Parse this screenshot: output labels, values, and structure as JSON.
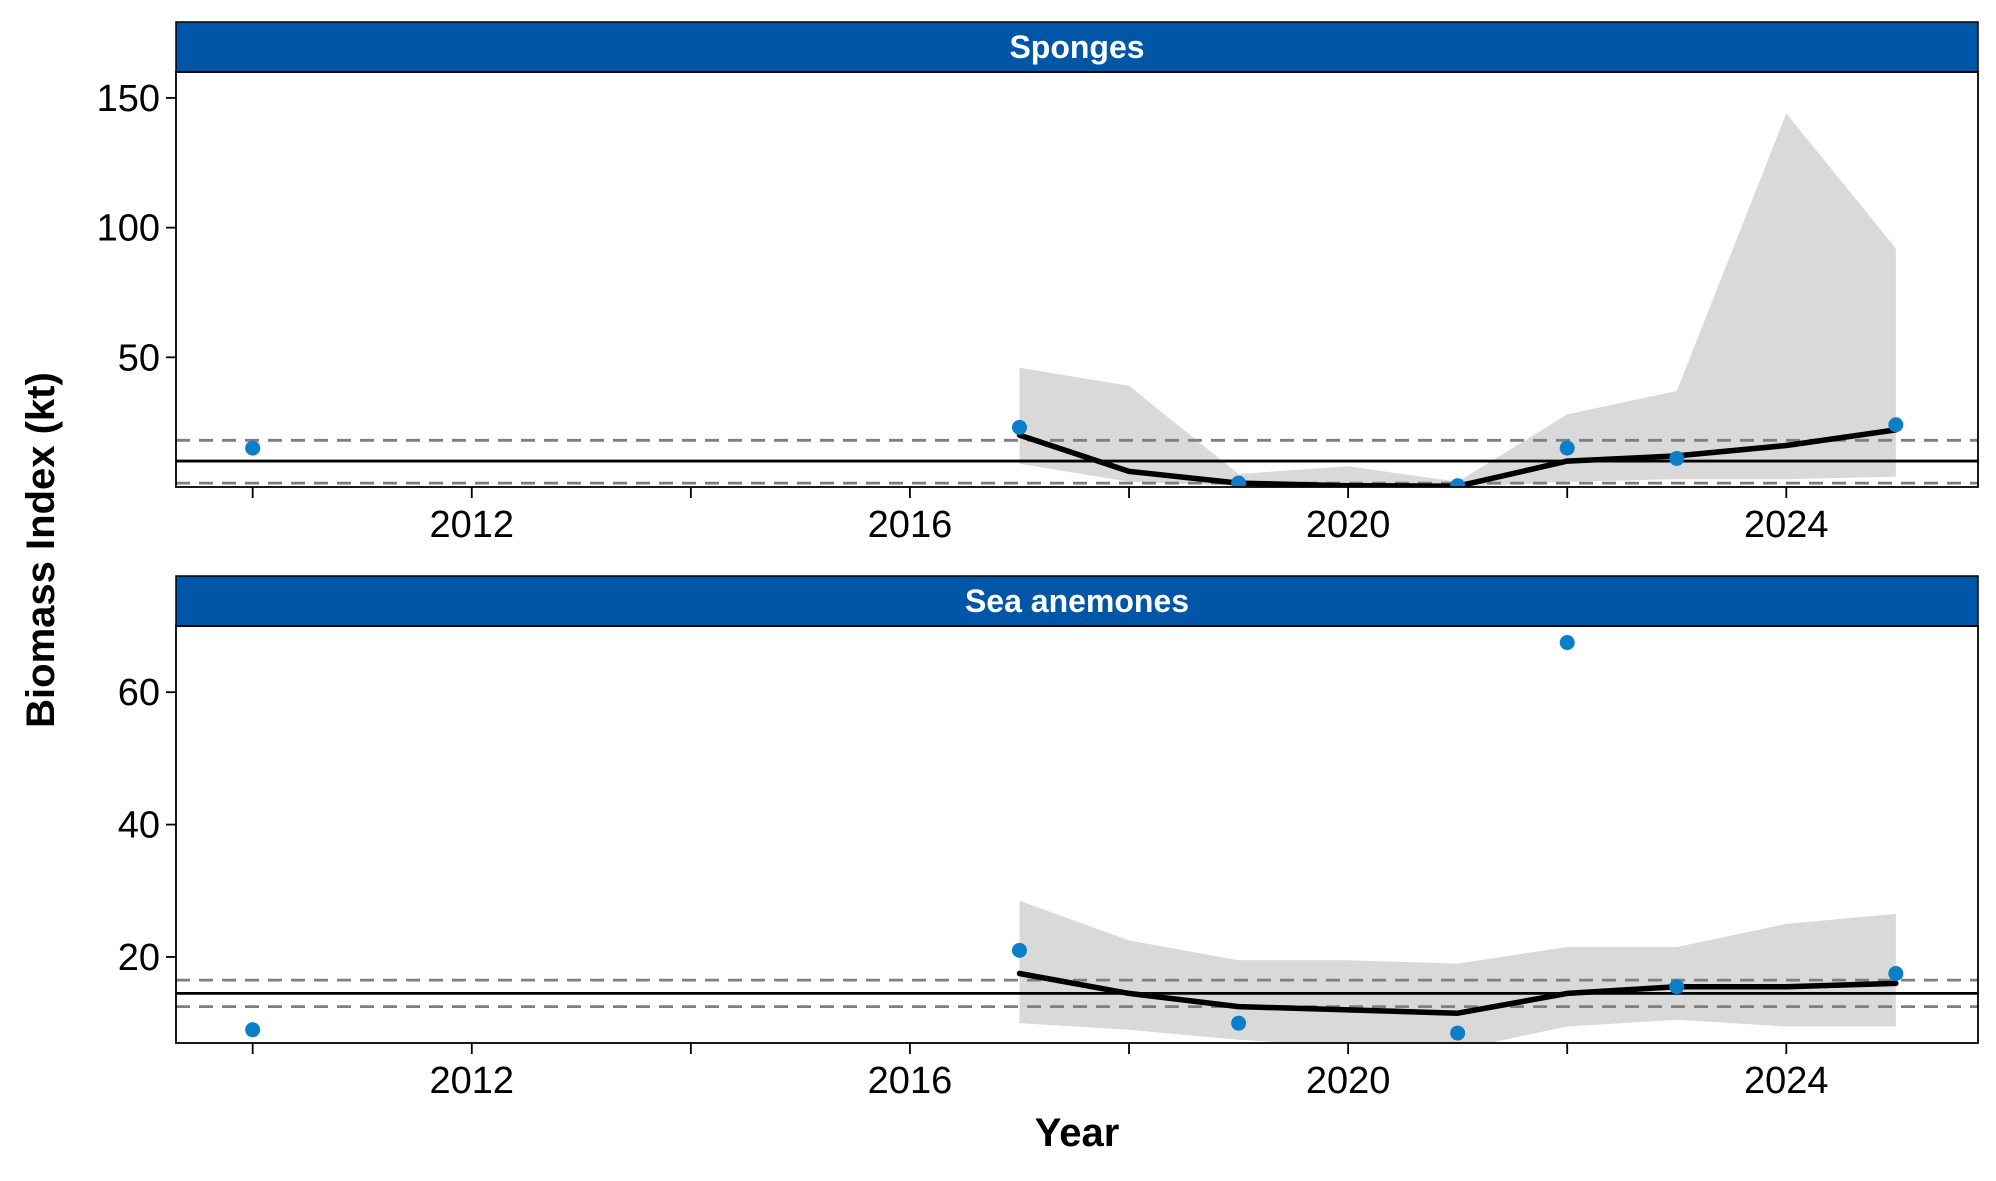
{
  "chart_data": {
    "type": "line",
    "xlabel": "Year",
    "ylabel": "Biomass Index (kt)",
    "xlim": [
      2009.3,
      2025.75
    ],
    "x_ticks": [
      2012,
      2016,
      2020,
      2024
    ],
    "x_minor_ticks": [
      2010,
      2014,
      2018,
      2022
    ],
    "colors": {
      "strip": "#0056a6",
      "points": "#0a7ec9",
      "ribbon": "#d9d9d9",
      "line": "#000000",
      "reference": "#7f7f7f"
    },
    "panels": [
      {
        "title": "Sponges",
        "ylim": [
          0,
          160
        ],
        "y_ticks": [
          50,
          100,
          150
        ],
        "y_tick_labels": [
          "50",
          "100",
          "150"
        ],
        "observed": {
          "x": [
            2010,
            2017,
            2019,
            2021,
            2022,
            2023,
            2025
          ],
          "y": [
            15,
            23,
            1.5,
            0.5,
            15,
            11,
            24
          ]
        },
        "fitted": {
          "x": [
            2017,
            2018,
            2019,
            2020,
            2021,
            2022,
            2023,
            2024,
            2025
          ],
          "y": [
            20,
            6,
            1.5,
            0.5,
            0.3,
            10,
            12,
            16,
            22
          ],
          "lower": [
            9,
            2,
            0.5,
            0,
            0,
            2,
            3,
            3,
            4
          ],
          "upper": [
            46,
            39,
            5,
            8,
            2,
            28,
            37,
            144,
            92
          ]
        },
        "reference_lines": {
          "mean": 10,
          "lower": 1.5,
          "upper": 18
        }
      },
      {
        "title": "Sea anemones",
        "ylim": [
          7,
          70
        ],
        "y_ticks": [
          20,
          40,
          60
        ],
        "y_tick_labels": [
          "20",
          "40",
          "60"
        ],
        "observed": {
          "x": [
            2010,
            2017,
            2019,
            2021,
            2022,
            2023,
            2025
          ],
          "y": [
            9,
            21,
            10,
            8.5,
            67.5,
            15.5,
            17.5
          ]
        },
        "fitted": {
          "x": [
            2017,
            2018,
            2019,
            2020,
            2021,
            2022,
            2023,
            2024,
            2025
          ],
          "y": [
            17.5,
            14.5,
            12.5,
            12,
            11.5,
            14.5,
            15.5,
            15.5,
            16
          ],
          "lower": [
            10,
            9,
            7.5,
            6.5,
            6,
            9.5,
            10.5,
            9.5,
            9.5
          ],
          "upper": [
            28.5,
            22.5,
            19.5,
            19.5,
            19,
            21.5,
            21.5,
            25,
            26.5
          ]
        },
        "reference_lines": {
          "mean": 14.5,
          "lower": 12.5,
          "upper": 16.5
        }
      }
    ]
  }
}
